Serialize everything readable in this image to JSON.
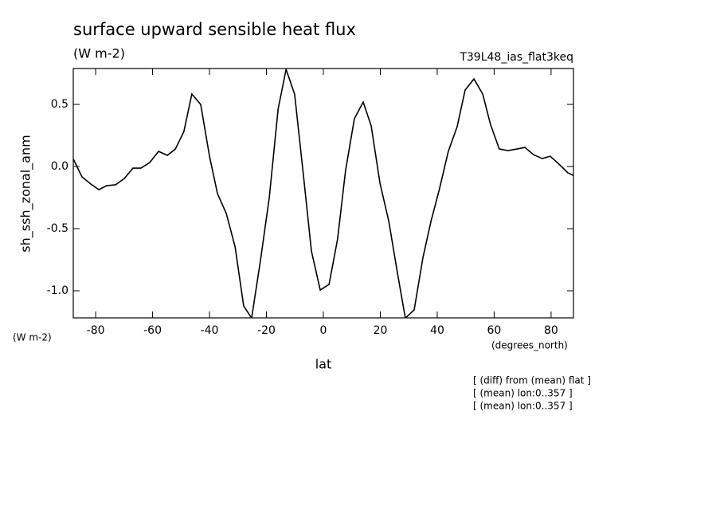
{
  "chart_data": {
    "type": "line",
    "title": "surface upward sensible heat flux",
    "subtitle": "(W m-2)",
    "run_label": "T39L48_ias_flat3keq",
    "y_label": "sh_ssh_zonal_anm",
    "y_units": "(W m-2)",
    "x_label": "lat",
    "x_units": "(degrees_north)",
    "annotations": [
      "[ (diff) from (mean) flat ]",
      "[ (mean) lon:0..357 ]",
      "[ (mean) lon:0..357 ]"
    ],
    "x": [
      -87.8,
      -84.8,
      -81.7,
      -78.9,
      -76.1,
      -73.0,
      -69.9,
      -66.9,
      -64.1,
      -61.0,
      -57.9,
      -54.8,
      -52.0,
      -49.0,
      -46.2,
      -43.1,
      -40.0,
      -37.2,
      -34.1,
      -31.0,
      -28.0,
      -25.2,
      -22.1,
      -19.0,
      -15.9,
      -13.1,
      -10.1,
      -7.0,
      -4.2,
      -1.1,
      2.0,
      5.0,
      7.8,
      10.9,
      14.0,
      16.8,
      19.9,
      23.0,
      26.0,
      28.8,
      31.9,
      35.0,
      37.8,
      40.8,
      43.9,
      47.0,
      49.8,
      52.9,
      56.0,
      58.7,
      61.8,
      64.9,
      68.0,
      70.8,
      73.8,
      76.9,
      79.7,
      82.8,
      85.9,
      87.8
    ],
    "series": [
      {
        "name": "sh_ssh_zonal_anm",
        "color": "#000000",
        "values": [
          0.058,
          -0.083,
          -0.141,
          -0.186,
          -0.154,
          -0.147,
          -0.096,
          -0.013,
          -0.013,
          0.032,
          0.122,
          0.09,
          0.141,
          0.282,
          0.583,
          0.5,
          0.083,
          -0.218,
          -0.378,
          -0.647,
          -1.122,
          -1.22,
          -0.756,
          -0.25,
          0.462,
          0.782,
          0.583,
          -0.071,
          -0.679,
          -0.994,
          -0.949,
          -0.583,
          -0.032,
          0.385,
          0.519,
          0.327,
          -0.135,
          -0.442,
          -0.853,
          -1.22,
          -1.154,
          -0.731,
          -0.442,
          -0.179,
          0.122,
          0.321,
          0.615,
          0.705,
          0.583,
          0.34,
          0.141,
          0.128,
          0.141,
          0.154,
          0.096,
          0.064,
          0.083,
          0.019,
          -0.051,
          -0.071
        ]
      }
    ],
    "xlim": [
      -87.86,
      87.86
    ],
    "ylim": [
      -1.218,
      0.789
    ],
    "xticks": [
      -80,
      -60,
      -40,
      -20,
      0,
      20,
      40,
      60,
      80
    ],
    "yticks": [
      0.5,
      {
        "value": 0,
        "label": "0.0"
      },
      -0.5,
      {
        "value": -1,
        "label": "-1.0"
      }
    ],
    "grid": false
  }
}
